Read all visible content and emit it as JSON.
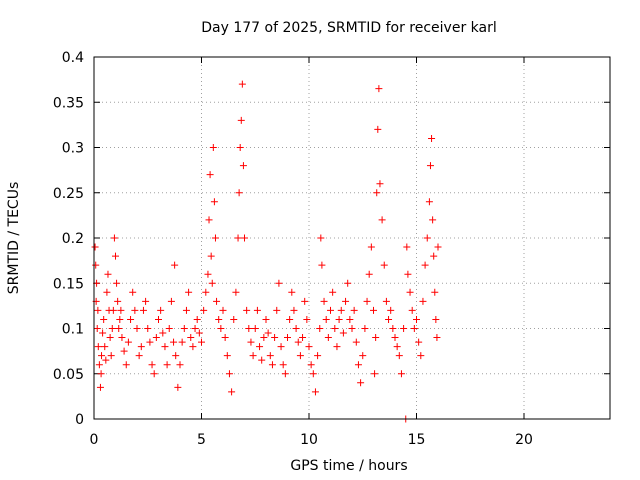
{
  "chart_data": {
    "type": "scatter",
    "title": "Day 177 of 2025, SRMTID for receiver karl",
    "xlabel": "GPS time / hours",
    "ylabel": "SRMTID / TECUs",
    "xlim": [
      0,
      24
    ],
    "ylim": [
      0,
      0.4
    ],
    "xticks": [
      0,
      5,
      10,
      15,
      20
    ],
    "yticks": [
      0,
      0.05,
      0.1,
      0.15,
      0.2,
      0.25,
      0.3,
      0.35,
      0.4
    ],
    "xtick_labels": [
      "0",
      "5",
      "10",
      "15",
      "20"
    ],
    "ytick_labels": [
      "0",
      "0.05",
      "0.1",
      "0.15",
      "0.2",
      "0.25",
      "0.3",
      "0.35",
      "0.4"
    ],
    "grid": true,
    "marker": "+",
    "color": "#ff0000",
    "series": [
      {
        "name": "SRMTID",
        "points": [
          [
            0.05,
            0.19
          ],
          [
            0.08,
            0.17
          ],
          [
            0.1,
            0.13
          ],
          [
            0.12,
            0.15
          ],
          [
            0.15,
            0.1
          ],
          [
            0.18,
            0.12
          ],
          [
            0.2,
            0.08
          ],
          [
            0.25,
            0.06
          ],
          [
            0.3,
            0.035
          ],
          [
            0.33,
            0.05
          ],
          [
            0.35,
            0.07
          ],
          [
            0.4,
            0.095
          ],
          [
            0.45,
            0.11
          ],
          [
            0.5,
            0.08
          ],
          [
            0.55,
            0.065
          ],
          [
            0.6,
            0.14
          ],
          [
            0.65,
            0.16
          ],
          [
            0.7,
            0.12
          ],
          [
            0.75,
            0.09
          ],
          [
            0.8,
            0.07
          ],
          [
            0.85,
            0.1
          ],
          [
            0.9,
            0.12
          ],
          [
            0.95,
            0.2
          ],
          [
            1.0,
            0.18
          ],
          [
            1.05,
            0.15
          ],
          [
            1.1,
            0.13
          ],
          [
            1.15,
            0.1
          ],
          [
            1.2,
            0.11
          ],
          [
            1.25,
            0.12
          ],
          [
            1.3,
            0.09
          ],
          [
            1.4,
            0.075
          ],
          [
            1.5,
            0.06
          ],
          [
            1.6,
            0.085
          ],
          [
            1.7,
            0.11
          ],
          [
            1.8,
            0.14
          ],
          [
            1.9,
            0.12
          ],
          [
            2.0,
            0.1
          ],
          [
            2.1,
            0.07
          ],
          [
            2.2,
            0.08
          ],
          [
            2.3,
            0.12
          ],
          [
            2.4,
            0.13
          ],
          [
            2.5,
            0.1
          ],
          [
            2.6,
            0.085
          ],
          [
            2.7,
            0.06
          ],
          [
            2.8,
            0.05
          ],
          [
            2.9,
            0.09
          ],
          [
            3.0,
            0.11
          ],
          [
            3.1,
            0.12
          ],
          [
            3.2,
            0.095
          ],
          [
            3.3,
            0.08
          ],
          [
            3.4,
            0.06
          ],
          [
            3.5,
            0.1
          ],
          [
            3.6,
            0.13
          ],
          [
            3.7,
            0.085
          ],
          [
            3.75,
            0.17
          ],
          [
            3.8,
            0.07
          ],
          [
            3.9,
            0.035
          ],
          [
            4.0,
            0.06
          ],
          [
            4.1,
            0.085
          ],
          [
            4.2,
            0.1
          ],
          [
            4.3,
            0.12
          ],
          [
            4.4,
            0.14
          ],
          [
            4.5,
            0.09
          ],
          [
            4.6,
            0.08
          ],
          [
            4.7,
            0.1
          ],
          [
            4.8,
            0.11
          ],
          [
            4.9,
            0.095
          ],
          [
            5.0,
            0.085
          ],
          [
            5.1,
            0.12
          ],
          [
            5.2,
            0.14
          ],
          [
            5.3,
            0.16
          ],
          [
            5.35,
            0.22
          ],
          [
            5.4,
            0.27
          ],
          [
            5.45,
            0.18
          ],
          [
            5.5,
            0.15
          ],
          [
            5.55,
            0.3
          ],
          [
            5.6,
            0.24
          ],
          [
            5.65,
            0.2
          ],
          [
            5.7,
            0.13
          ],
          [
            5.8,
            0.11
          ],
          [
            5.9,
            0.1
          ],
          [
            6.0,
            0.12
          ],
          [
            6.1,
            0.09
          ],
          [
            6.2,
            0.07
          ],
          [
            6.3,
            0.05
          ],
          [
            6.4,
            0.03
          ],
          [
            6.5,
            0.11
          ],
          [
            6.6,
            0.14
          ],
          [
            6.7,
            0.2
          ],
          [
            6.75,
            0.25
          ],
          [
            6.8,
            0.3
          ],
          [
            6.85,
            0.33
          ],
          [
            6.9,
            0.37
          ],
          [
            6.95,
            0.28
          ],
          [
            7.0,
            0.2
          ],
          [
            7.1,
            0.12
          ],
          [
            7.2,
            0.1
          ],
          [
            7.3,
            0.085
          ],
          [
            7.4,
            0.07
          ],
          [
            7.5,
            0.1
          ],
          [
            7.6,
            0.12
          ],
          [
            7.7,
            0.08
          ],
          [
            7.8,
            0.065
          ],
          [
            7.9,
            0.09
          ],
          [
            8.0,
            0.11
          ],
          [
            8.1,
            0.095
          ],
          [
            8.2,
            0.07
          ],
          [
            8.3,
            0.06
          ],
          [
            8.4,
            0.09
          ],
          [
            8.5,
            0.12
          ],
          [
            8.6,
            0.15
          ],
          [
            8.7,
            0.08
          ],
          [
            8.8,
            0.06
          ],
          [
            8.9,
            0.05
          ],
          [
            9.0,
            0.09
          ],
          [
            9.1,
            0.11
          ],
          [
            9.2,
            0.14
          ],
          [
            9.3,
            0.12
          ],
          [
            9.4,
            0.1
          ],
          [
            9.5,
            0.085
          ],
          [
            9.6,
            0.07
          ],
          [
            9.7,
            0.09
          ],
          [
            9.8,
            0.13
          ],
          [
            9.9,
            0.11
          ],
          [
            10.0,
            0.08
          ],
          [
            10.1,
            0.06
          ],
          [
            10.2,
            0.05
          ],
          [
            10.3,
            0.03
          ],
          [
            10.4,
            0.07
          ],
          [
            10.5,
            0.1
          ],
          [
            10.55,
            0.2
          ],
          [
            10.6,
            0.17
          ],
          [
            10.7,
            0.13
          ],
          [
            10.8,
            0.11
          ],
          [
            10.9,
            0.09
          ],
          [
            11.0,
            0.12
          ],
          [
            11.1,
            0.14
          ],
          [
            11.2,
            0.1
          ],
          [
            11.3,
            0.08
          ],
          [
            11.4,
            0.11
          ],
          [
            11.5,
            0.12
          ],
          [
            11.6,
            0.095
          ],
          [
            11.7,
            0.13
          ],
          [
            11.8,
            0.15
          ],
          [
            11.9,
            0.11
          ],
          [
            12.0,
            0.1
          ],
          [
            12.1,
            0.12
          ],
          [
            12.2,
            0.085
          ],
          [
            12.3,
            0.06
          ],
          [
            12.4,
            0.04
          ],
          [
            12.5,
            0.07
          ],
          [
            12.6,
            0.1
          ],
          [
            12.7,
            0.13
          ],
          [
            12.8,
            0.16
          ],
          [
            12.9,
            0.19
          ],
          [
            13.0,
            0.12
          ],
          [
            13.05,
            0.05
          ],
          [
            13.1,
            0.09
          ],
          [
            13.15,
            0.25
          ],
          [
            13.2,
            0.32
          ],
          [
            13.25,
            0.365
          ],
          [
            13.3,
            0.26
          ],
          [
            13.4,
            0.22
          ],
          [
            13.5,
            0.17
          ],
          [
            13.6,
            0.13
          ],
          [
            13.7,
            0.11
          ],
          [
            13.8,
            0.12
          ],
          [
            13.9,
            0.1
          ],
          [
            14.0,
            0.09
          ],
          [
            14.1,
            0.08
          ],
          [
            14.2,
            0.07
          ],
          [
            14.3,
            0.05
          ],
          [
            14.4,
            0.1
          ],
          [
            14.5,
            0.0
          ],
          [
            14.55,
            0.19
          ],
          [
            14.6,
            0.16
          ],
          [
            14.7,
            0.14
          ],
          [
            14.8,
            0.12
          ],
          [
            14.9,
            0.1
          ],
          [
            15.0,
            0.11
          ],
          [
            15.1,
            0.085
          ],
          [
            15.2,
            0.07
          ],
          [
            15.3,
            0.13
          ],
          [
            15.4,
            0.17
          ],
          [
            15.5,
            0.2
          ],
          [
            15.6,
            0.24
          ],
          [
            15.65,
            0.28
          ],
          [
            15.7,
            0.31
          ],
          [
            15.75,
            0.22
          ],
          [
            15.8,
            0.18
          ],
          [
            15.85,
            0.14
          ],
          [
            15.9,
            0.11
          ],
          [
            15.95,
            0.09
          ],
          [
            16.0,
            0.19
          ]
        ]
      }
    ]
  }
}
